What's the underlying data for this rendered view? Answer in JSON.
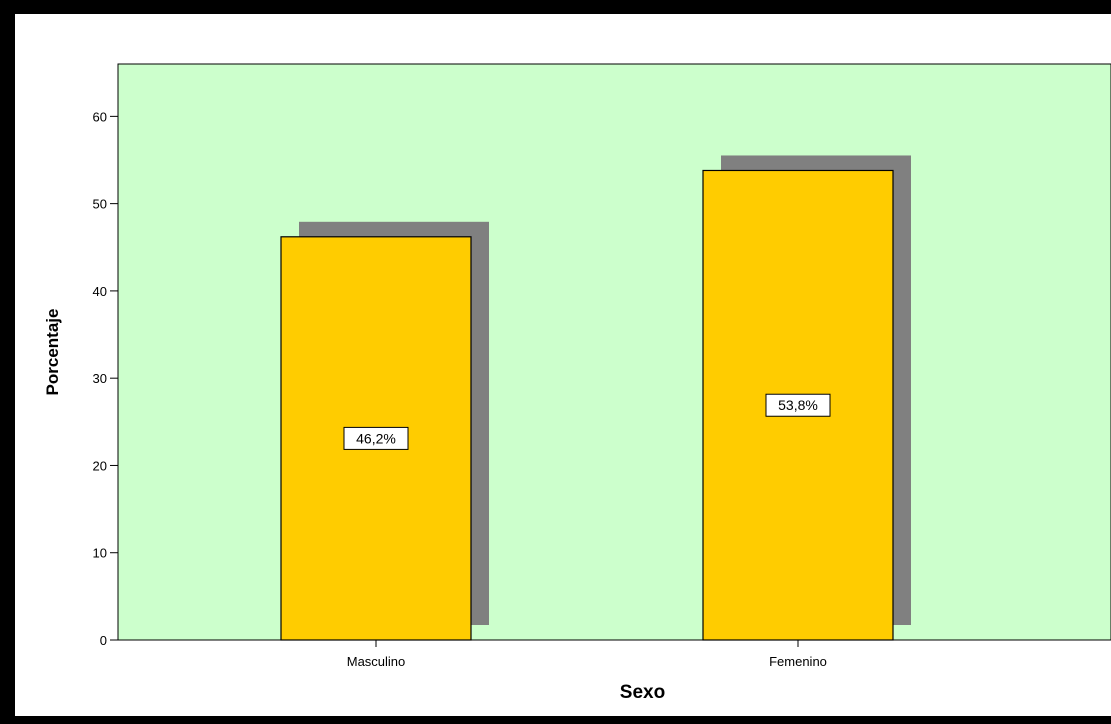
{
  "chart_data": {
    "type": "bar",
    "categories": [
      "Masculino",
      "Femenino"
    ],
    "values": [
      46.2,
      53.8
    ],
    "value_labels": [
      "46,2%",
      "53,8%"
    ],
    "xlabel": "Sexo",
    "ylabel": "Porcentaje",
    "ylim": [
      0,
      66
    ],
    "yticks": [
      0,
      10,
      20,
      30,
      40,
      50,
      60
    ],
    "grid": false,
    "legend": "none",
    "colors": {
      "plot_background": "#ccffcc",
      "bar_fill": "#ffcc00",
      "bar_stroke": "#000000",
      "shadow": "#808080",
      "frame": "#000000"
    }
  }
}
